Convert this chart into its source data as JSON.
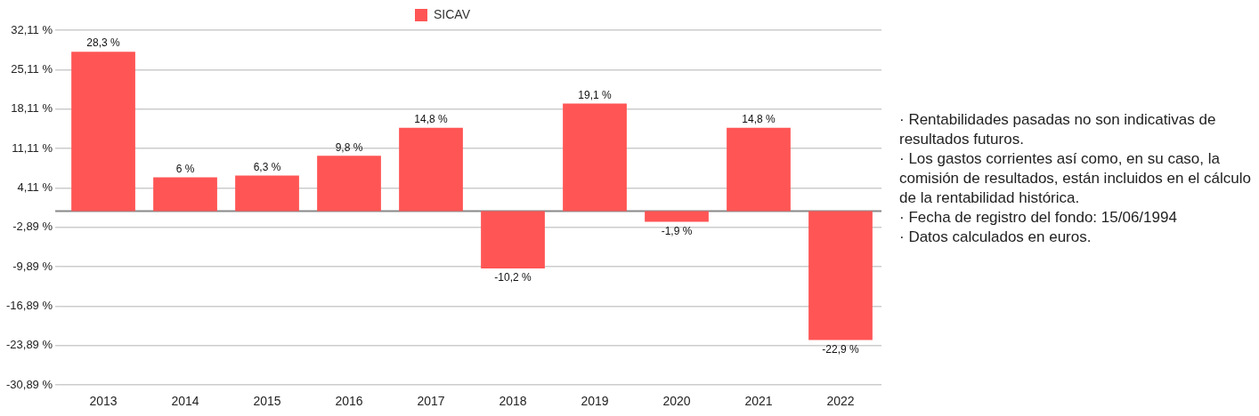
{
  "chart_data": {
    "type": "bar",
    "categories": [
      "2013",
      "2014",
      "2015",
      "2016",
      "2017",
      "2018",
      "2019",
      "2020",
      "2021",
      "2022"
    ],
    "series": [
      {
        "name": "SICAV",
        "color": "#ff5555",
        "values": [
          28.3,
          6,
          6.3,
          9.8,
          14.8,
          -10.2,
          19.1,
          -1.9,
          14.8,
          -22.9
        ],
        "value_labels": [
          "28,3 %",
          "6 %",
          "6,3 %",
          "9,8 %",
          "14,8 %",
          "-10,2 %",
          "19,1 %",
          "-1,9 %",
          "14,8 %",
          "-22,9 %"
        ]
      }
    ],
    "ylim": [
      -30.89,
      32.11
    ],
    "yticks": [
      {
        "value": -30.89,
        "label": "-30,89 %"
      },
      {
        "value": -23.89,
        "label": "-23,89 %"
      },
      {
        "value": -16.89,
        "label": "-16,89 %"
      },
      {
        "value": -9.89,
        "label": "-9,89 %"
      },
      {
        "value": -2.89,
        "label": "-2,89 %"
      },
      {
        "value": 4.11,
        "label": "4,11 %"
      },
      {
        "value": 11.11,
        "label": "11,11 %"
      },
      {
        "value": 18.11,
        "label": "18,11 %"
      },
      {
        "value": 25.11,
        "label": "25,11 %"
      },
      {
        "value": 32.11,
        "label": "32,11 %"
      }
    ],
    "ref_lines": [
      {
        "axis": "y",
        "value": 0,
        "color": "#888888"
      }
    ],
    "grid": "y",
    "legend": "top",
    "annotations": [
      "· Rentabilidades pasadas no son indicativas de resultados futuros.",
      "· Los gastos corrientes así como, en su caso, la comisión de resultados, están incluidos en el cálculo de la rentabilidad histórica.",
      "· Fecha de registro del fondo: 15/06/1994",
      "· Datos calculados en euros."
    ]
  }
}
